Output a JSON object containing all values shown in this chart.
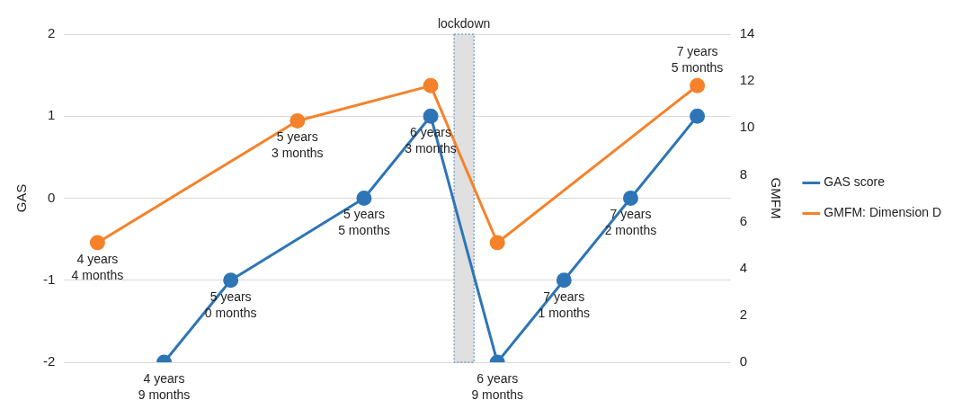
{
  "chart_data": {
    "type": "line",
    "ylabel": "GAS",
    "y2label": "GMFM",
    "categories": [
      "4 years 4 months",
      "4 years 9 months",
      "5 years 0 months",
      "5 years 3 months",
      "5 years 5 months",
      "6 years 3 months",
      "6 years 9 months",
      "7 years 1 months",
      "7 years 2 months",
      "7 years 5 months"
    ],
    "ylim": [
      -2,
      2
    ],
    "yticks": [
      -2,
      -1,
      0,
      1,
      2
    ],
    "y2lim": [
      0,
      14
    ],
    "y2ticks": [
      0,
      2,
      4,
      6,
      8,
      10,
      12,
      14
    ],
    "grid": "y",
    "legend": "right",
    "marker": "circle",
    "series": [
      {
        "name": "GAS score",
        "color": "#2e75b6",
        "values": [
          null,
          -2,
          -1,
          null,
          0,
          1,
          -2,
          -1,
          0,
          1
        ]
      },
      {
        "name": "GMFM: Dimension D",
        "color": "#f5822a",
        "axis": "y2",
        "values": [
          5.1,
          null,
          null,
          10.3,
          null,
          11.8,
          5.1,
          null,
          null,
          11.8
        ]
      }
    ],
    "bands": [
      {
        "axis": "x",
        "from": "6 years 3 months",
        "to": "6 years 9 months",
        "label": "lockdown",
        "color": "#e0e0e0"
      }
    ]
  }
}
